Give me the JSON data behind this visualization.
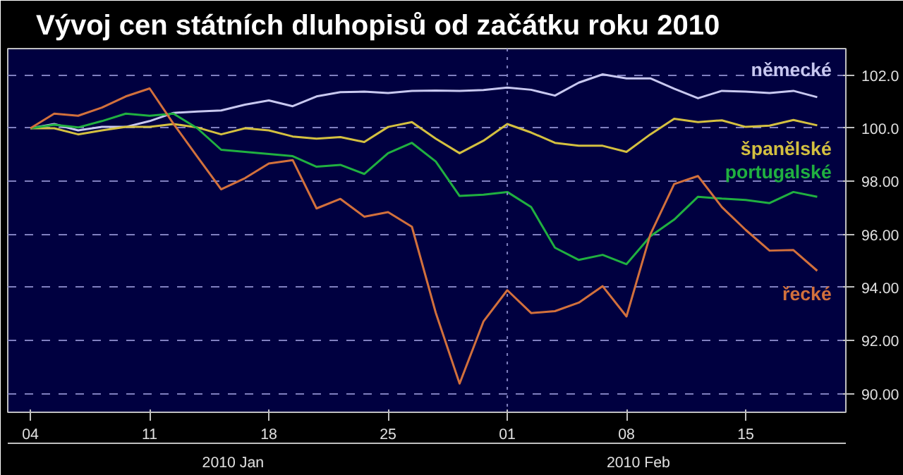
{
  "chart_data": {
    "type": "line",
    "title": "Vývoj cen státních dluhopisů od začátku roku 2010",
    "categories": [
      "04",
      null,
      null,
      null,
      null,
      "11",
      null,
      null,
      null,
      null,
      "18",
      null,
      null,
      null,
      null,
      "25",
      null,
      null,
      null,
      null,
      "01",
      null,
      null,
      null,
      null,
      "08",
      null,
      null,
      null,
      null,
      "15",
      null,
      null,
      null
    ],
    "series": [
      {
        "name": "německé",
        "color": "#c8c8f0",
        "values": [
          100,
          100.16,
          99.92,
          100.05,
          100.05,
          100.27,
          100.58,
          100.63,
          100.67,
          100.89,
          101.05,
          100.83,
          101.2,
          101.36,
          101.38,
          101.33,
          101.41,
          101.42,
          101.41,
          101.44,
          101.53,
          101.45,
          101.23,
          101.72,
          102.03,
          101.88,
          101.88,
          101.49,
          101.13,
          101.41,
          101.38,
          101.33,
          101.41,
          101.17
        ]
      },
      {
        "name": "španělské",
        "color": "#d4c040",
        "values": [
          100,
          100.0,
          99.77,
          99.92,
          100.05,
          100.05,
          100.16,
          100.03,
          99.77,
          100.0,
          99.92,
          99.69,
          99.61,
          99.67,
          99.48,
          100.05,
          100.23,
          99.61,
          99.06,
          99.53,
          100.16,
          99.84,
          99.45,
          99.34,
          99.34,
          99.11,
          99.77,
          100.36,
          100.23,
          100.3,
          100.05,
          100.1,
          100.31,
          100.11
        ]
      },
      {
        "name": "portugalské",
        "color": "#20b040",
        "values": [
          100,
          100.13,
          100.03,
          100.27,
          100.55,
          100.47,
          100.55,
          100.0,
          99.19,
          99.11,
          99.03,
          98.95,
          98.55,
          98.62,
          98.28,
          99.06,
          99.45,
          98.75,
          97.45,
          97.5,
          97.6,
          97.03,
          95.5,
          95.04,
          95.23,
          94.88,
          95.93,
          96.56,
          97.42,
          97.35,
          97.3,
          97.18,
          97.6,
          97.42
        ]
      },
      {
        "name": "řecké",
        "color": "#d2703c",
        "values": [
          100,
          100.55,
          100.47,
          100.78,
          101.2,
          101.5,
          100.17,
          98.93,
          97.7,
          98.12,
          98.67,
          98.8,
          96.98,
          97.34,
          96.67,
          96.84,
          96.29,
          93.05,
          90.38,
          92.72,
          93.9,
          93.04,
          93.11,
          93.43,
          94.05,
          92.91,
          96.0,
          97.9,
          98.2,
          97.03,
          96.17,
          95.39,
          95.41,
          94.63
        ]
      }
    ],
    "ylim": [
      89.3,
      103
    ],
    "yticks": [
      {
        "value": 90,
        "label": "90.00"
      },
      {
        "value": 92,
        "label": "92.00"
      },
      {
        "value": 94,
        "label": "94.00"
      },
      {
        "value": 96,
        "label": "96.00"
      },
      {
        "value": 98,
        "label": "98.00"
      },
      {
        "value": 100,
        "label": "100.0"
      },
      {
        "value": 102,
        "label": "102.0"
      }
    ],
    "grid": "y",
    "marker": "none",
    "line_style": "solid",
    "ref_lines": [
      {
        "axis": "x",
        "value": "01",
        "line_style": "dotted",
        "color": "#8080c0"
      }
    ],
    "annotations": [
      "2010 Jan",
      "2010 Feb"
    ]
  }
}
